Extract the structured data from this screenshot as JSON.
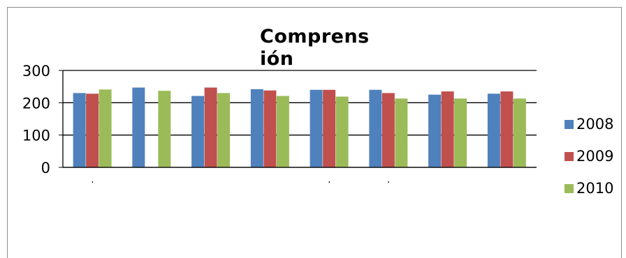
{
  "chart_data": {
    "type": "bar",
    "title": "Comprensión",
    "title_lines": [
      "Comprens",
      "ión"
    ],
    "categories": [
      ".",
      "",
      "",
      "",
      ".",
      ".",
      "",
      ""
    ],
    "ylim": [
      0,
      300
    ],
    "yticks": [
      0,
      100,
      200,
      300
    ],
    "grid": true,
    "legend_position": "right",
    "series": [
      {
        "name": "2008",
        "color": "#4f81bd",
        "values": [
          230,
          247,
          221,
          242,
          240,
          240,
          225,
          228
        ]
      },
      {
        "name": "2009",
        "color": "#c0504d",
        "values": [
          228,
          0,
          247,
          238,
          240,
          230,
          235,
          235
        ]
      },
      {
        "name": "2010",
        "color": "#9bbb59",
        "values": [
          241,
          237,
          230,
          221,
          219,
          213,
          213,
          213
        ]
      }
    ]
  }
}
